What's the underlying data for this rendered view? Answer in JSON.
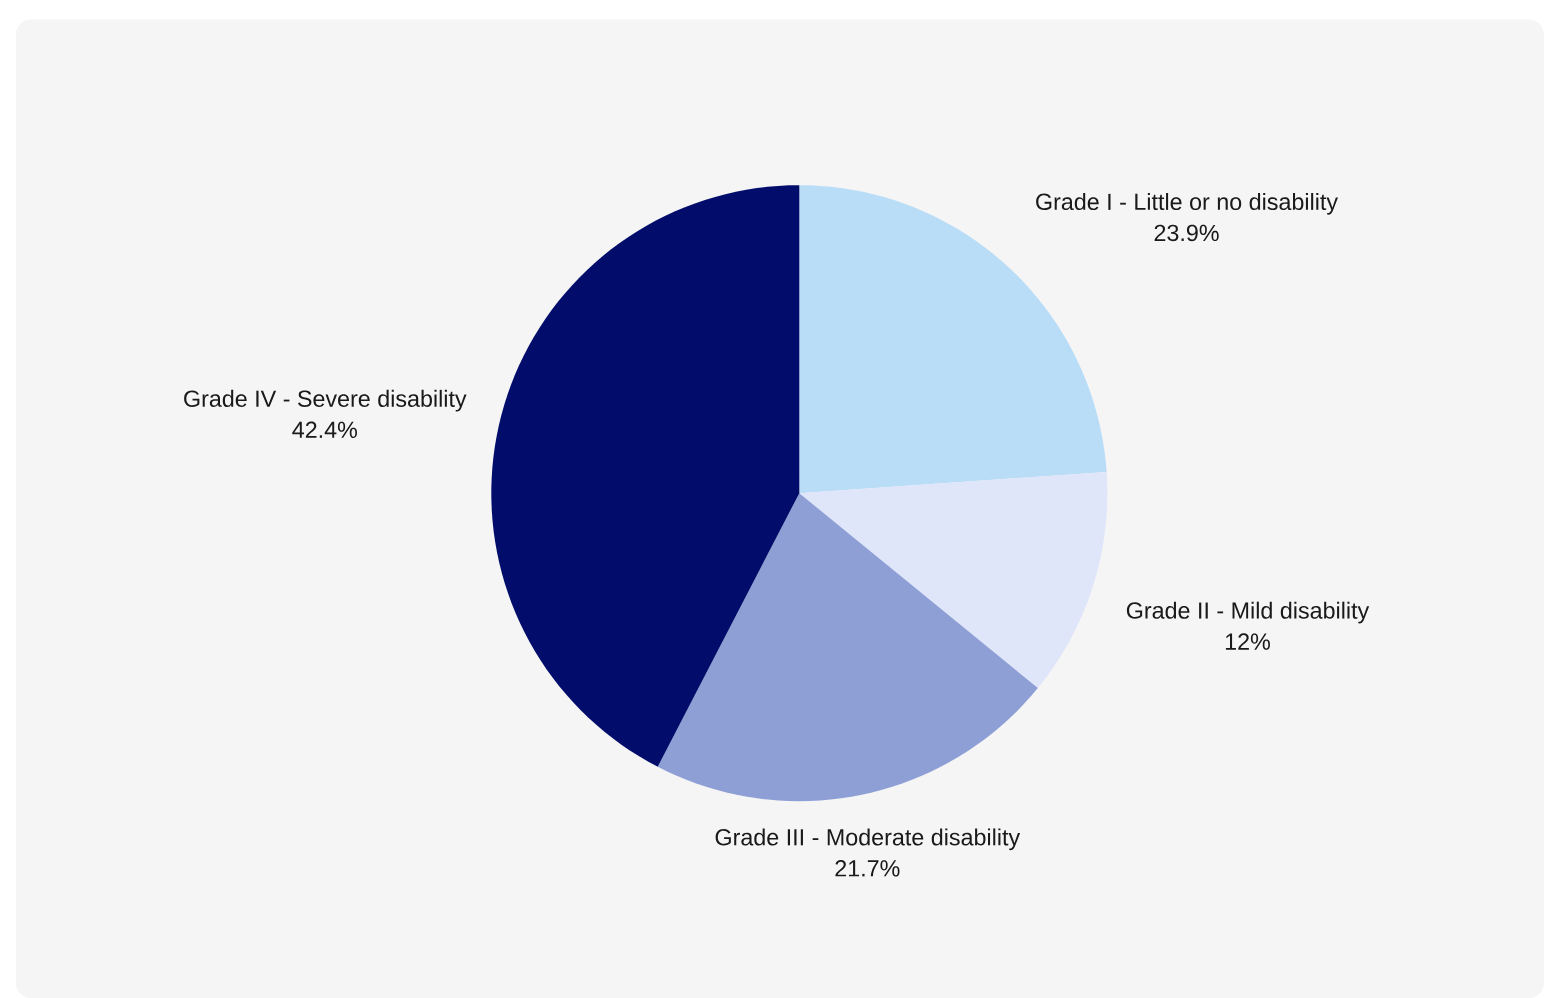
{
  "chart_data": {
    "type": "pie",
    "categories": [
      "Grade I - Little or no disability",
      "Grade II - Mild disability",
      "Grade III - Moderate disability",
      "Grade IV - Severe disability"
    ],
    "values": [
      23.9,
      12,
      21.7,
      42.4
    ],
    "colors": [
      "#b9ddf7",
      "#e0e6fa",
      "#8e9fd6",
      "#020d6b"
    ],
    "value_labels": [
      "23.9%",
      "12%",
      "21.7%",
      "42.4%"
    ]
  }
}
